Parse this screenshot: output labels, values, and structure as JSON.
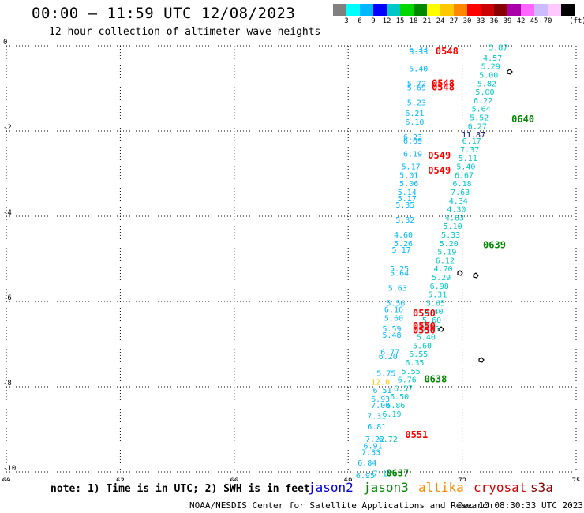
{
  "header": {
    "title": "00:00 – 11:59 UTC 12/08/2023",
    "subtitle": "12 hour collection of altimeter wave heights"
  },
  "scale": {
    "unit": "(ft)",
    "colors": [
      "#808080",
      "#00ffff",
      "#00b8ff",
      "#0000ff",
      "#00c8c8",
      "#00d800",
      "#008800",
      "#ffff00",
      "#ffc800",
      "#ff8800",
      "#ff0000",
      "#cc0000",
      "#880000",
      "#aa00aa",
      "#ff66ff",
      "#ccbbff",
      "#ffc8ff",
      "#000000"
    ],
    "labels": [
      "3",
      "6",
      "9",
      "12",
      "15",
      "18",
      "21",
      "24",
      "27",
      "30",
      "33",
      "36",
      "39",
      "42",
      "45",
      "70"
    ]
  },
  "footer": {
    "note": "note: 1) Time is in UTC; 2) SWH is in feet",
    "satellites": [
      {
        "name": "jason2",
        "color": "#0000cc"
      },
      {
        "name": "jason3",
        "color": "#008800"
      },
      {
        "name": "altika",
        "color": "#ff8800"
      },
      {
        "name": "cryosat",
        "color": "#cc0000"
      },
      {
        "name": "s3a",
        "color": "#880000"
      }
    ],
    "credit": "NOAA/NESDIS Center for Satellite Applications and Research",
    "timestamp": "Dec 10 08:30:33 UTC 2023"
  },
  "chart_data": {
    "type": "scatter",
    "title": "00:00 – 11:59 UTC 12/08/2023",
    "xlim": [
      60,
      75
    ],
    "ylim": [
      -10,
      0
    ],
    "x_ticks": [
      "60",
      "63",
      "66",
      "69",
      "72",
      "75"
    ],
    "y_ticks": [
      "0",
      "-2",
      "-4",
      "-6",
      "-8",
      "-10"
    ],
    "grid": true,
    "series": [
      {
        "color": "#00b8ff",
        "points": [
          {
            "x": 70.85,
            "y": -0.15,
            "v": "6.33"
          },
          {
            "x": 70.85,
            "y": -0.2,
            "v": "6.33"
          },
          {
            "x": 70.85,
            "y": -0.6,
            "v": "5.40"
          },
          {
            "x": 70.8,
            "y": -0.95,
            "v": "5.72"
          },
          {
            "x": 70.8,
            "y": -1.05,
            "v": "5.69"
          },
          {
            "x": 70.8,
            "y": -1.4,
            "v": "5.23"
          },
          {
            "x": 70.75,
            "y": -1.65,
            "v": "6.21"
          },
          {
            "x": 70.75,
            "y": -1.85,
            "v": "6.10"
          },
          {
            "x": 70.7,
            "y": -2.2,
            "v": "6.23"
          },
          {
            "x": 70.7,
            "y": -2.3,
            "v": "6.69"
          },
          {
            "x": 70.7,
            "y": -2.6,
            "v": "6.19"
          },
          {
            "x": 70.65,
            "y": -2.9,
            "v": "5.17"
          },
          {
            "x": 70.6,
            "y": -3.1,
            "v": "5.01"
          },
          {
            "x": 70.6,
            "y": -3.3,
            "v": "5.06"
          },
          {
            "x": 70.55,
            "y": -3.5,
            "v": "5.14"
          },
          {
            "x": 70.55,
            "y": -3.65,
            "v": "5.17"
          },
          {
            "x": 70.5,
            "y": -3.8,
            "v": "5.35"
          },
          {
            "x": 70.5,
            "y": -4.15,
            "v": "5.32"
          },
          {
            "x": 70.45,
            "y": -4.5,
            "v": "4.60"
          },
          {
            "x": 70.45,
            "y": -4.7,
            "v": "5.26"
          },
          {
            "x": 70.4,
            "y": -4.85,
            "v": "5.17"
          },
          {
            "x": 70.35,
            "y": -5.3,
            "v": "5.25"
          },
          {
            "x": 70.35,
            "y": -5.4,
            "v": "5.64"
          },
          {
            "x": 70.3,
            "y": -5.75,
            "v": "5.63"
          },
          {
            "x": 70.25,
            "y": -6.1,
            "v": "5.56"
          },
          {
            "x": 70.2,
            "y": -6.25,
            "v": "6.16"
          },
          {
            "x": 70.2,
            "y": -6.45,
            "v": "5.60"
          },
          {
            "x": 70.15,
            "y": -6.7,
            "v": "5.59"
          },
          {
            "x": 70.15,
            "y": -6.85,
            "v": "5.48"
          },
          {
            "x": 70.1,
            "y": -7.25,
            "v": "6.77"
          },
          {
            "x": 70.05,
            "y": -7.35,
            "v": "6.20"
          },
          {
            "x": 70.0,
            "y": -7.75,
            "v": "5.75"
          },
          {
            "x": 69.9,
            "y": -8.15,
            "v": "6.51"
          },
          {
            "x": 69.85,
            "y": -8.35,
            "v": "6.93"
          },
          {
            "x": 69.85,
            "y": -8.5,
            "v": "7.00"
          },
          {
            "x": 69.75,
            "y": -8.75,
            "v": "7.31"
          },
          {
            "x": 69.75,
            "y": -9.0,
            "v": "6.81"
          },
          {
            "x": 69.7,
            "y": -9.3,
            "v": "7.22"
          },
          {
            "x": 69.65,
            "y": -9.45,
            "v": "6.91"
          },
          {
            "x": 69.6,
            "y": -9.6,
            "v": "7.33"
          },
          {
            "x": 69.5,
            "y": -9.85,
            "v": "6.84"
          },
          {
            "x": 69.45,
            "y": -10.15,
            "v": "6.95"
          },
          {
            "x": 69.4,
            "y": -10.35,
            "v": "7.15"
          }
        ]
      },
      {
        "color": "#00c8c8",
        "points": [
          {
            "x": 72.95,
            "y": -0.1,
            "v": "5.87"
          },
          {
            "x": 72.8,
            "y": -0.35,
            "v": "4.57"
          },
          {
            "x": 72.75,
            "y": -0.55,
            "v": "5.29"
          },
          {
            "x": 72.7,
            "y": -0.75,
            "v": "5.00"
          },
          {
            "x": 72.65,
            "y": -0.95,
            "v": "5.82"
          },
          {
            "x": 72.6,
            "y": -1.15,
            "v": "5.00"
          },
          {
            "x": 72.55,
            "y": -1.35,
            "v": "6.22"
          },
          {
            "x": 72.5,
            "y": -1.55,
            "v": "5.64"
          },
          {
            "x": 72.45,
            "y": -1.75,
            "v": "5.52"
          },
          {
            "x": 72.4,
            "y": -1.95,
            "v": "6.27"
          },
          {
            "x": 72.25,
            "y": -2.3,
            "v": "6.17"
          },
          {
            "x": 72.2,
            "y": -2.5,
            "v": "7.37"
          },
          {
            "x": 72.15,
            "y": -2.7,
            "v": "5.11"
          },
          {
            "x": 72.1,
            "y": -2.9,
            "v": "5.40"
          },
          {
            "x": 72.05,
            "y": -3.1,
            "v": "6.67"
          },
          {
            "x": 72.0,
            "y": -3.3,
            "v": "6.18"
          },
          {
            "x": 71.95,
            "y": -3.5,
            "v": "7.63"
          },
          {
            "x": 71.9,
            "y": -3.7,
            "v": "4.34"
          },
          {
            "x": 71.85,
            "y": -3.9,
            "v": "4.30"
          },
          {
            "x": 71.8,
            "y": -4.1,
            "v": "4.63"
          },
          {
            "x": 71.75,
            "y": -4.3,
            "v": "5.10"
          },
          {
            "x": 71.7,
            "y": -4.5,
            "v": "5.33"
          },
          {
            "x": 71.65,
            "y": -4.7,
            "v": "5.20"
          },
          {
            "x": 71.6,
            "y": -4.9,
            "v": "5.19"
          },
          {
            "x": 71.55,
            "y": -5.1,
            "v": "6.12"
          },
          {
            "x": 71.5,
            "y": -5.3,
            "v": "4.70"
          },
          {
            "x": 71.45,
            "y": -5.5,
            "v": "5.29"
          },
          {
            "x": 71.4,
            "y": -5.7,
            "v": "6.98"
          },
          {
            "x": 71.35,
            "y": -5.9,
            "v": "5.31"
          },
          {
            "x": 71.3,
            "y": -6.1,
            "v": "5.65"
          },
          {
            "x": 71.25,
            "y": -6.3,
            "v": "5.40"
          },
          {
            "x": 71.2,
            "y": -6.5,
            "v": "5.60"
          },
          {
            "x": 71.15,
            "y": -6.7,
            "v": "5.55"
          },
          {
            "x": 71.05,
            "y": -6.9,
            "v": "5.40"
          },
          {
            "x": 70.95,
            "y": -7.1,
            "v": "5.60"
          },
          {
            "x": 70.85,
            "y": -7.3,
            "v": "6.55"
          },
          {
            "x": 70.75,
            "y": -7.5,
            "v": "6.35"
          },
          {
            "x": 70.65,
            "y": -7.7,
            "v": "5.55"
          },
          {
            "x": 70.55,
            "y": -7.9,
            "v": "6.76"
          },
          {
            "x": 70.45,
            "y": -8.1,
            "v": "6.57"
          },
          {
            "x": 70.35,
            "y": -8.3,
            "v": "6.50"
          },
          {
            "x": 70.25,
            "y": -8.5,
            "v": "5.86"
          },
          {
            "x": 70.15,
            "y": -8.7,
            "v": "6.19"
          },
          {
            "x": 70.05,
            "y": -9.3,
            "v": "6.72"
          },
          {
            "x": 69.9,
            "y": -10.1,
            "v": "7.13"
          }
        ]
      },
      {
        "color": "#000088",
        "points": [
          {
            "x": 72.3,
            "y": -2.15,
            "v": "11.87"
          }
        ]
      },
      {
        "color": "#ffc800",
        "points": [
          {
            "x": 69.85,
            "y": -7.95,
            "v": "12.0"
          }
        ]
      },
      {
        "color": "#ff0000",
        "time_labels": [
          {
            "x": 71.6,
            "y": -0.2,
            "t": "0548"
          },
          {
            "x": 71.5,
            "y": -0.95,
            "t": "0548"
          },
          {
            "x": 71.5,
            "y": -1.05,
            "t": "0548"
          },
          {
            "x": 71.4,
            "y": -2.65,
            "t": "0549"
          },
          {
            "x": 71.4,
            "y": -3.0,
            "t": "0549"
          },
          {
            "x": 71.0,
            "y": -6.35,
            "t": "0550"
          },
          {
            "x": 71.0,
            "y": -6.65,
            "t": "0550"
          },
          {
            "x": 71.0,
            "y": -6.75,
            "t": "0550"
          },
          {
            "x": 70.8,
            "y": -9.2,
            "t": "0551"
          }
        ]
      },
      {
        "color": "#008800",
        "time_labels": [
          {
            "x": 73.6,
            "y": -1.8,
            "t": "0640"
          },
          {
            "x": 72.85,
            "y": -4.75,
            "t": "0639"
          },
          {
            "x": 71.3,
            "y": -7.9,
            "t": "0638"
          },
          {
            "x": 70.3,
            "y": -10.1,
            "t": "0637"
          }
        ]
      }
    ]
  }
}
